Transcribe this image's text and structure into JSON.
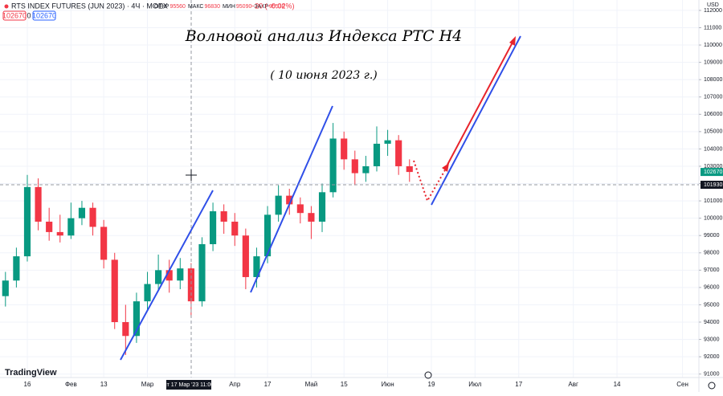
{
  "header": {
    "symbol": "RTS INDEX FUTURES (JUN 2023) · 4Ч · MOEX",
    "ohlc": [
      {
        "label": "ОТКР",
        "value": 95560
      },
      {
        "label": "МАКС",
        "value": 96830
      },
      {
        "label": "МИН",
        "value": 95090
      },
      {
        "label": "ЗАКР",
        "value": 95530
      }
    ],
    "change": "−20 (−0.02%)",
    "sell": 102670,
    "spread": 0,
    "buy": 102670,
    "brand": "TradingView"
  },
  "chart_data": {
    "type": "candlestick",
    "title": "Волновой анализ Индекса РТС H4",
    "subtitle": "( 10 июня 2023 г.)",
    "currency": "USD",
    "categories": [
      null,
      null,
      "16",
      null,
      null,
      null,
      "Фев",
      null,
      null,
      "13",
      null,
      null,
      null,
      "Мар",
      null,
      null,
      null,
      null,
      null,
      null,
      null,
      "Апр",
      null,
      null,
      "17",
      null,
      null,
      null,
      "Май",
      null,
      null,
      "15",
      null,
      null,
      null,
      "Июн",
      null,
      null,
      null,
      "19",
      null,
      null,
      null,
      "Июл",
      null,
      null,
      null,
      "17",
      null,
      null,
      null,
      null,
      "Авг",
      null,
      null,
      null,
      "14",
      null,
      null,
      null,
      null,
      null,
      "Сен",
      null
    ],
    "open": [
      95500,
      96400,
      97800,
      101800,
      99800,
      99200,
      99000,
      100000,
      100600,
      99500,
      97600,
      94000,
      93200,
      95200,
      96200,
      97000,
      96400,
      97100,
      95200,
      98500,
      100400,
      99800,
      99000,
      96600,
      97800,
      100200,
      101300,
      100800,
      100300,
      99800,
      101500,
      104600,
      103400,
      102600,
      103000,
      104300,
      104500,
      103000,
      null,
      null,
      null,
      null,
      null,
      null,
      null,
      null,
      null,
      null,
      null,
      null,
      null,
      null,
      null,
      null,
      null,
      null,
      null,
      null,
      null,
      null,
      null,
      null,
      null,
      null
    ],
    "high": [
      96900,
      98300,
      102500,
      102300,
      100600,
      100200,
      100900,
      101000,
      100900,
      99900,
      98000,
      95000,
      95700,
      96900,
      97900,
      97600,
      97700,
      97400,
      98900,
      100900,
      100800,
      100300,
      99400,
      98300,
      100700,
      101900,
      101700,
      101200,
      100700,
      102000,
      105500,
      105000,
      103900,
      103600,
      105300,
      105100,
      104800,
      103400,
      null,
      null,
      null,
      null,
      null,
      null,
      null,
      null,
      null,
      null,
      null,
      null,
      null,
      null,
      null,
      null,
      null,
      null,
      null,
      null,
      null,
      null,
      null,
      null,
      null,
      null
    ],
    "low": [
      94900,
      96000,
      97500,
      99300,
      98700,
      98600,
      98800,
      99600,
      99000,
      97100,
      93600,
      92100,
      92800,
      94700,
      95800,
      95700,
      95900,
      94300,
      94900,
      98100,
      99100,
      98400,
      95900,
      96000,
      97400,
      99800,
      100200,
      99700,
      98800,
      99200,
      101200,
      102800,
      101900,
      102100,
      102700,
      103600,
      102500,
      102100,
      null,
      null,
      null,
      null,
      null,
      null,
      null,
      null,
      null,
      null,
      null,
      null,
      null,
      null,
      null,
      null,
      null,
      null,
      null,
      null,
      null,
      null,
      null,
      null,
      null,
      null
    ],
    "close": [
      96400,
      97800,
      101800,
      99800,
      99200,
      99000,
      100000,
      100600,
      99500,
      97600,
      94000,
      93200,
      95200,
      96200,
      97000,
      96400,
      97100,
      95200,
      98500,
      100400,
      99800,
      99000,
      96600,
      97800,
      100200,
      101300,
      100800,
      100300,
      99800,
      101500,
      104600,
      103400,
      102600,
      103000,
      104300,
      104500,
      103000,
      102670,
      null,
      null,
      null,
      null,
      null,
      null,
      null,
      null,
      null,
      null,
      null,
      null,
      null,
      null,
      null,
      null,
      null,
      null,
      null,
      null,
      null,
      null,
      null,
      null,
      null,
      null
    ],
    "up_color": "#089981",
    "down_color": "#f23645",
    "ylim": [
      90800,
      112600
    ],
    "yticks": [
      91000,
      92000,
      93000,
      94000,
      95000,
      96000,
      97000,
      98000,
      99000,
      100000,
      101000,
      102000,
      103000,
      104000,
      105000,
      106000,
      107000,
      108000,
      109000,
      110000,
      111000,
      112000
    ],
    "grid": true,
    "last_price": 102670,
    "crosshair": {
      "price": 101930,
      "time": "пт 17 Мар '23 11:00"
    }
  }
}
